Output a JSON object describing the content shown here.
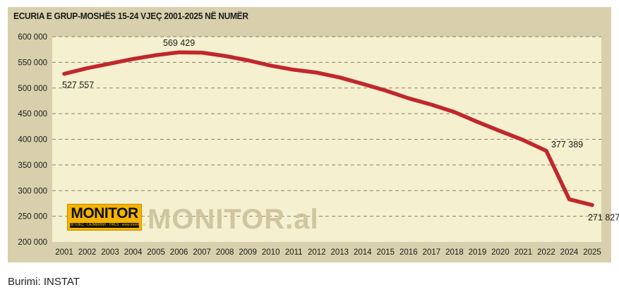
{
  "chart_data": {
    "type": "line",
    "title": "ECURIA E GRUP-MOSHËS 15-24 VJEÇ 2001-2025 NË NUMËR",
    "categories": [
      "2001",
      "2002",
      "2003",
      "2004",
      "2005",
      "2006",
      "2007",
      "2008",
      "2009",
      "2010",
      "2011",
      "2012",
      "2013",
      "2014",
      "2015",
      "2016",
      "2017",
      "2018",
      "2019",
      "2020",
      "2021",
      "2022",
      "2024",
      "2025"
    ],
    "values": [
      527557,
      538500,
      547500,
      556500,
      564000,
      569429,
      569000,
      562500,
      554000,
      543500,
      535500,
      530000,
      520500,
      508000,
      495000,
      480000,
      467500,
      453000,
      434000,
      416000,
      398500,
      377389,
      283000,
      271827
    ],
    "ylim": [
      200000,
      600000
    ],
    "yticks": [
      "600 000",
      "550 000",
      "500 000",
      "450 000",
      "400 000",
      "350 000",
      "300 000",
      "250 000",
      "200 000"
    ],
    "ytick_values": [
      600000,
      550000,
      500000,
      450000,
      400000,
      350000,
      300000,
      250000,
      200000
    ],
    "data_labels": [
      {
        "index": 0,
        "text": "527 557"
      },
      {
        "index": 5,
        "text": "569 429"
      },
      {
        "index": 21,
        "text": "377 389"
      },
      {
        "index": 23,
        "text": "271 827"
      }
    ],
    "grid": "horizontal dashed",
    "line_color": "#c1272d",
    "plot_bg": "#f5f0cf",
    "frame_bg": "#d8d0ac"
  },
  "logo": {
    "brand": "MONITOR",
    "strip": "30 VJEÇ · LAJMËRIMI · TIRLS · www.monitor.al",
    "watermark": "MONITOR.al"
  },
  "source": "Burimi: INSTAT"
}
